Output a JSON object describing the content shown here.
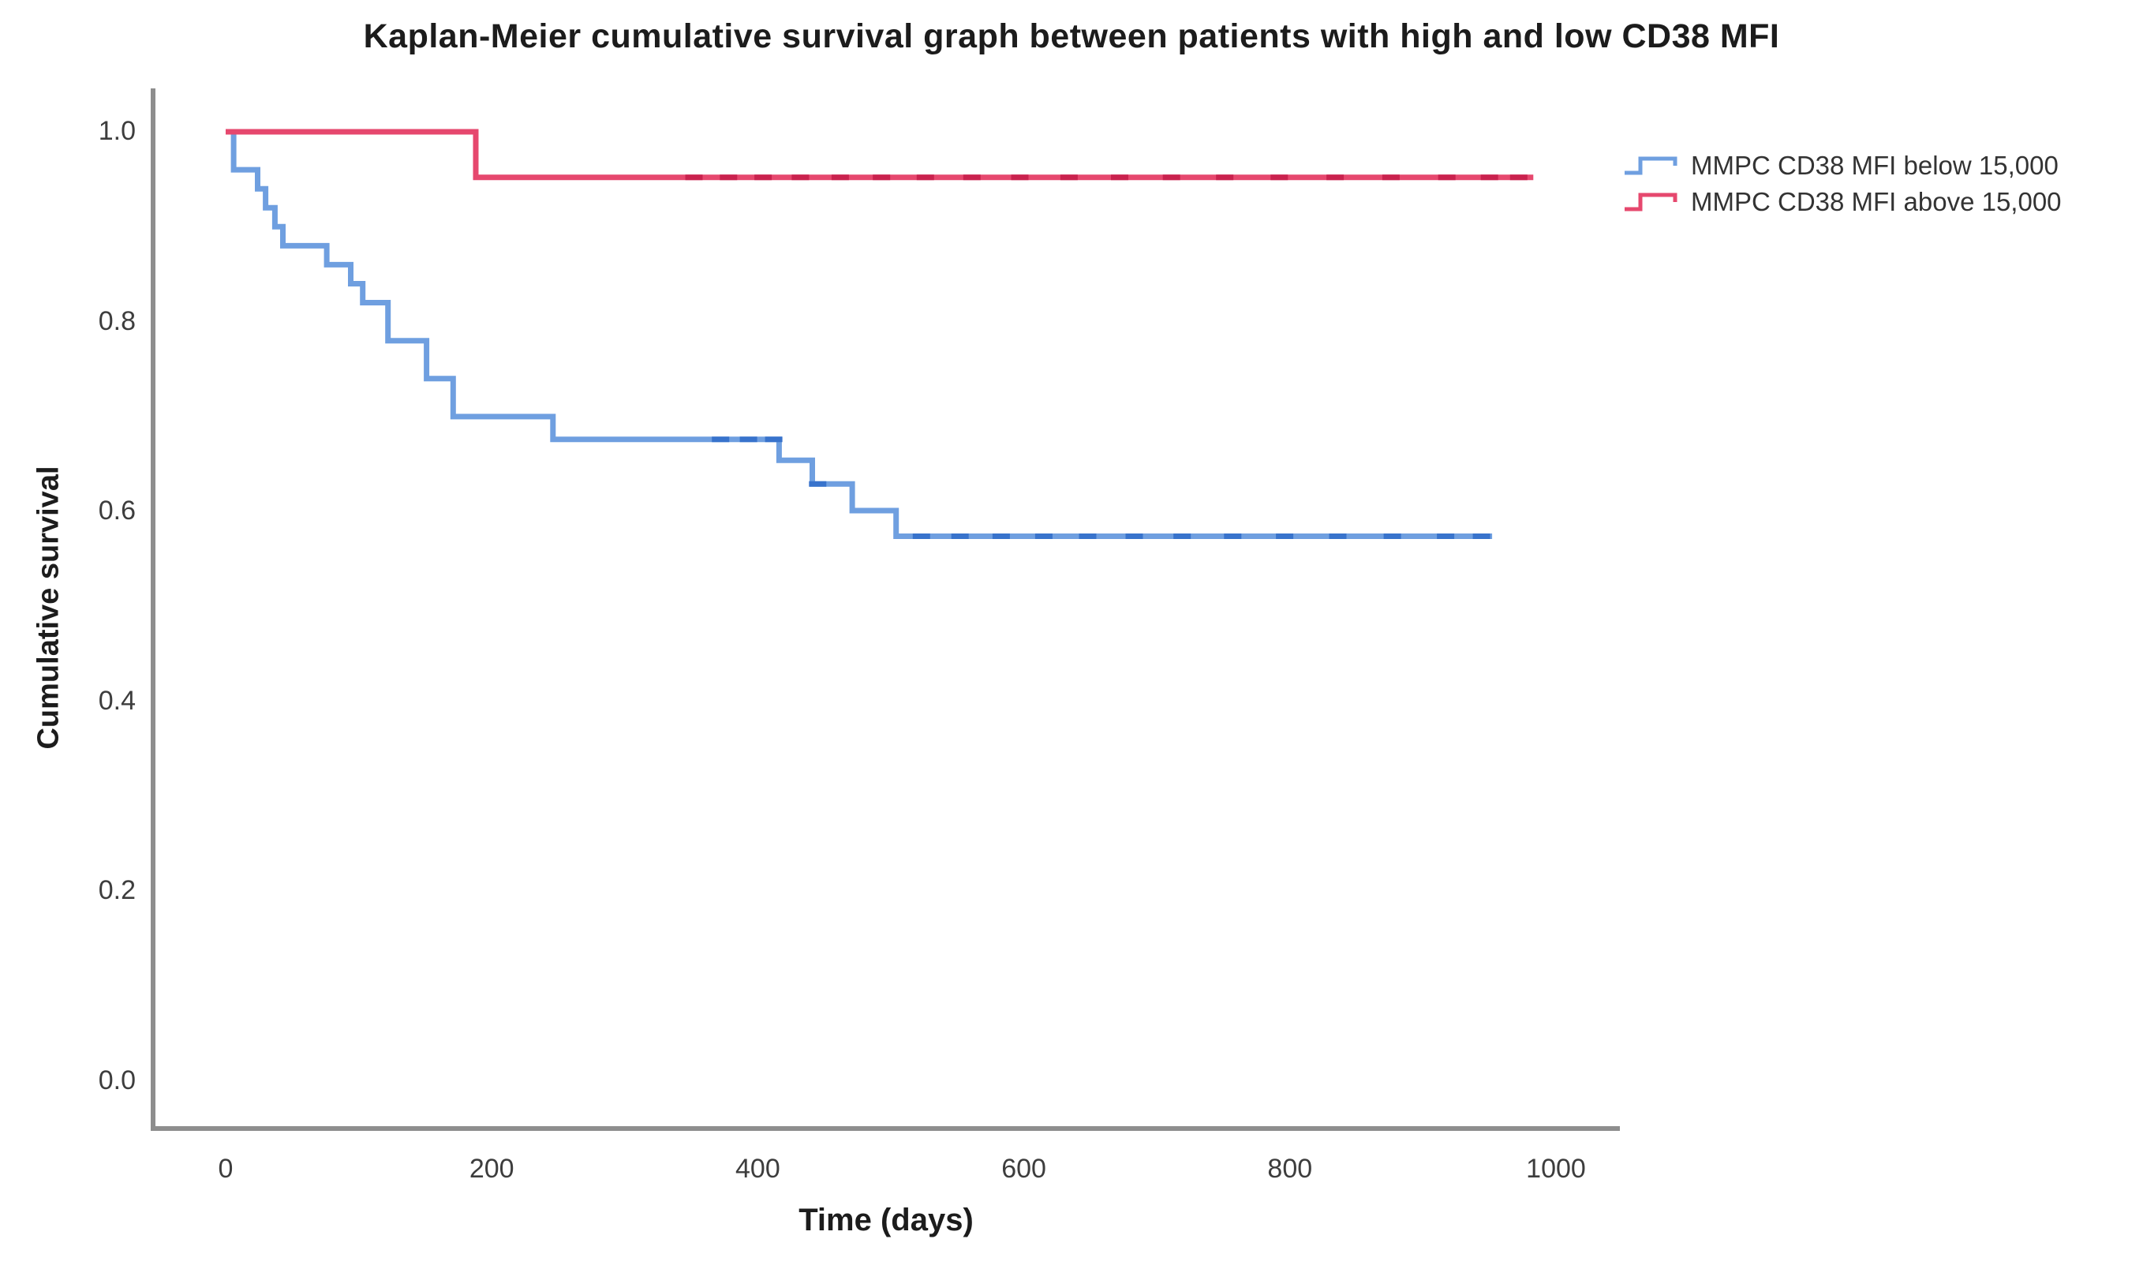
{
  "title": "Kaplan-Meier cumulative survival graph between patients with high and low CD38 MFI",
  "axes": {
    "x": {
      "label": "Time (days)",
      "ticks": [
        "0",
        "200",
        "400",
        "600",
        "800",
        "1000"
      ]
    },
    "y": {
      "label": "Cumulative survival",
      "ticks": [
        "1.0",
        "0.8",
        "0.6",
        "0.4",
        "0.2",
        "0.0"
      ]
    }
  },
  "legend": {
    "items": [
      {
        "label": "MMPC CD38 MFI below 15,000",
        "color": "#6f9fe0"
      },
      {
        "label": "MMPC CD38 MFI above 15,000",
        "color": "#e6486e"
      }
    ]
  },
  "chart_data": {
    "type": "line",
    "variant": "kaplan_meier_step",
    "title": "Kaplan-Meier cumulative survival graph between patients with high and low CD38 MFI",
    "xlabel": "Time (days)",
    "ylabel": "Cumulative survival",
    "xlim": [
      0,
      1050
    ],
    "ylim": [
      0.0,
      1.0
    ],
    "grid": false,
    "legend_position": "right-outside-top",
    "series": [
      {
        "name": "MMPC CD38 MFI below 15,000",
        "color": "#6f9fe0",
        "censor_color": "#3873cc",
        "points": [
          [
            0,
            1.0
          ],
          [
            6,
            0.96
          ],
          [
            24,
            0.94
          ],
          [
            30,
            0.92
          ],
          [
            37,
            0.9
          ],
          [
            43,
            0.88
          ],
          [
            76,
            0.86
          ],
          [
            94,
            0.84
          ],
          [
            103,
            0.82
          ],
          [
            122,
            0.78
          ],
          [
            151,
            0.74
          ],
          [
            171,
            0.7
          ],
          [
            246,
            0.676
          ],
          [
            416,
            0.654
          ],
          [
            441,
            0.629
          ],
          [
            471,
            0.601
          ],
          [
            504,
            0.574
          ],
          [
            952,
            0.574
          ]
        ],
        "censor_times": [
          372,
          393,
          412,
          445,
          523,
          552,
          583,
          615,
          648,
          683,
          719,
          757,
          796,
          836,
          877,
          917,
          944
        ]
      },
      {
        "name": "MMPC CD38 MFI above 15,000",
        "color": "#e6486e",
        "censor_color": "#c9224e",
        "points": [
          [
            0,
            1.0
          ],
          [
            188,
            0.952
          ],
          [
            983,
            0.952
          ]
        ],
        "censor_times": [
          352,
          378,
          404,
          432,
          462,
          493,
          526,
          561,
          597,
          634,
          672,
          711,
          751,
          792,
          834,
          876,
          918,
          950,
          972
        ]
      }
    ]
  }
}
